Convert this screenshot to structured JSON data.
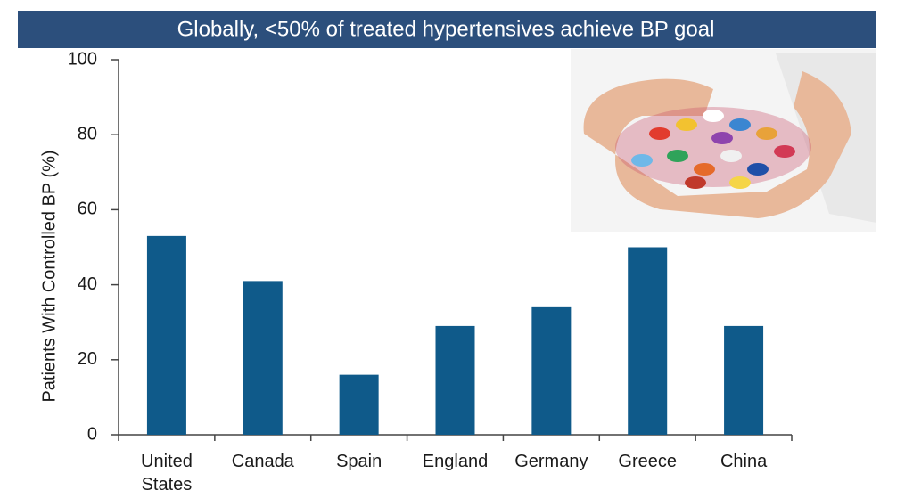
{
  "chart_data": {
    "type": "bar",
    "title": "Globally, <50% of treated hypertensives achieve BP goal",
    "ylabel": "Patients With Controlled BP (%)",
    "categories": [
      "United States",
      "Canada",
      "Spain",
      "England",
      "Germany",
      "Greece",
      "China"
    ],
    "values": [
      53,
      41,
      16,
      29,
      34,
      50,
      29
    ],
    "color": "#0f5a8a",
    "ylim": [
      0,
      100
    ],
    "yticks": [
      0,
      20,
      40,
      60,
      80,
      100
    ],
    "grid": false
  }
}
